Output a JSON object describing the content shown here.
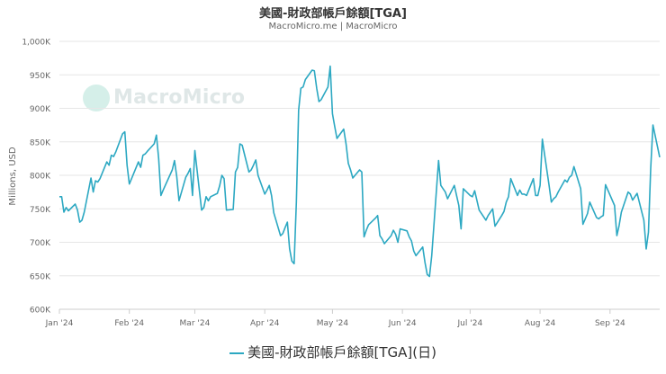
{
  "header": {
    "title": "美國-財政部帳戶餘額[TGA]",
    "subtitle": "MacroMicro.me | MacroMicro",
    "watermark": "MacroMicro"
  },
  "colors": {
    "series": "#2ca8c2",
    "grid": "#e6e6e6",
    "axis_text": "#666666"
  },
  "chart_data": {
    "type": "line",
    "title": "美國-財政部帳戶餘額[TGA]",
    "ylabel": "Millions, USD",
    "xlabel": "",
    "ylim": [
      600000,
      1000000
    ],
    "y_ticks": [
      600000,
      650000,
      700000,
      750000,
      800000,
      850000,
      900000,
      950000,
      1000000
    ],
    "y_tick_labels": [
      "600K",
      "650K",
      "700K",
      "750K",
      "800K",
      "850K",
      "900K",
      "950K",
      "1,000K"
    ],
    "x_range": [
      "2024-01-01",
      "2024-09-23"
    ],
    "x_ticks": [
      {
        "date": "2024-01-01",
        "label": "Jan '24"
      },
      {
        "date": "2024-02-01",
        "label": "Feb '24"
      },
      {
        "date": "2024-03-01",
        "label": "Mar '24"
      },
      {
        "date": "2024-04-01",
        "label": "Apr '24"
      },
      {
        "date": "2024-05-01",
        "label": "May '24"
      },
      {
        "date": "2024-06-01",
        "label": "Jun '24"
      },
      {
        "date": "2024-07-01",
        "label": "Jul '24"
      },
      {
        "date": "2024-08-01",
        "label": "Aug '24"
      },
      {
        "date": "2024-09-01",
        "label": "Sep '24"
      }
    ],
    "grid": true,
    "legend_position": "bottom",
    "series": [
      {
        "name": "美國-財政部帳戶餘額[TGA](日)",
        "points": [
          [
            "2024-01-01",
            768000
          ],
          [
            "2024-01-02",
            768000
          ],
          [
            "2024-01-03",
            745000
          ],
          [
            "2024-01-04",
            752000
          ],
          [
            "2024-01-05",
            747000
          ],
          [
            "2024-01-08",
            757000
          ],
          [
            "2024-01-09",
            748000
          ],
          [
            "2024-01-10",
            730000
          ],
          [
            "2024-01-11",
            733000
          ],
          [
            "2024-01-12",
            745000
          ],
          [
            "2024-01-15",
            796000
          ],
          [
            "2024-01-16",
            775000
          ],
          [
            "2024-01-17",
            792000
          ],
          [
            "2024-01-18",
            790000
          ],
          [
            "2024-01-19",
            795000
          ],
          [
            "2024-01-22",
            820000
          ],
          [
            "2024-01-23",
            815000
          ],
          [
            "2024-01-24",
            830000
          ],
          [
            "2024-01-25",
            828000
          ],
          [
            "2024-01-26",
            835000
          ],
          [
            "2024-01-29",
            862000
          ],
          [
            "2024-01-30",
            865000
          ],
          [
            "2024-01-31",
            815000
          ],
          [
            "2024-02-01",
            787000
          ],
          [
            "2024-02-02",
            795000
          ],
          [
            "2024-02-05",
            820000
          ],
          [
            "2024-02-06",
            812000
          ],
          [
            "2024-02-07",
            830000
          ],
          [
            "2024-02-08",
            832000
          ],
          [
            "2024-02-09",
            836000
          ],
          [
            "2024-02-12",
            847000
          ],
          [
            "2024-02-13",
            860000
          ],
          [
            "2024-02-14",
            825000
          ],
          [
            "2024-02-15",
            770000
          ],
          [
            "2024-02-16",
            778000
          ],
          [
            "2024-02-20",
            808000
          ],
          [
            "2024-02-21",
            822000
          ],
          [
            "2024-02-22",
            798000
          ],
          [
            "2024-02-23",
            762000
          ],
          [
            "2024-02-26",
            797000
          ],
          [
            "2024-02-27",
            803000
          ],
          [
            "2024-02-28",
            810000
          ],
          [
            "2024-02-29",
            770000
          ],
          [
            "2024-03-01",
            837000
          ],
          [
            "2024-03-04",
            748000
          ],
          [
            "2024-03-05",
            752000
          ],
          [
            "2024-03-06",
            768000
          ],
          [
            "2024-03-07",
            762000
          ],
          [
            "2024-03-08",
            768000
          ],
          [
            "2024-03-11",
            773000
          ],
          [
            "2024-03-12",
            784000
          ],
          [
            "2024-03-13",
            800000
          ],
          [
            "2024-03-14",
            795000
          ],
          [
            "2024-03-15",
            748000
          ],
          [
            "2024-03-18",
            749000
          ],
          [
            "2024-03-19",
            805000
          ],
          [
            "2024-03-20",
            812000
          ],
          [
            "2024-03-21",
            847000
          ],
          [
            "2024-03-22",
            845000
          ],
          [
            "2024-03-25",
            805000
          ],
          [
            "2024-03-26",
            808000
          ],
          [
            "2024-03-27",
            815000
          ],
          [
            "2024-03-28",
            823000
          ],
          [
            "2024-03-29",
            800000
          ],
          [
            "2024-04-01",
            772000
          ],
          [
            "2024-04-02",
            778000
          ],
          [
            "2024-04-03",
            785000
          ],
          [
            "2024-04-04",
            770000
          ],
          [
            "2024-04-05",
            744000
          ],
          [
            "2024-04-08",
            710000
          ],
          [
            "2024-04-09",
            713000
          ],
          [
            "2024-04-10",
            722000
          ],
          [
            "2024-04-11",
            730000
          ],
          [
            "2024-04-12",
            690000
          ],
          [
            "2024-04-13",
            672000
          ],
          [
            "2024-04-14",
            668000
          ],
          [
            "2024-04-15",
            760000
          ],
          [
            "2024-04-16",
            897000
          ],
          [
            "2024-04-17",
            930000
          ],
          [
            "2024-04-18",
            932000
          ],
          [
            "2024-04-19",
            943000
          ],
          [
            "2024-04-22",
            957000
          ],
          [
            "2024-04-23",
            956000
          ],
          [
            "2024-04-24",
            930000
          ],
          [
            "2024-04-25",
            910000
          ],
          [
            "2024-04-26",
            913000
          ],
          [
            "2024-04-29",
            932000
          ],
          [
            "2024-04-30",
            963000
          ],
          [
            "2024-05-01",
            892000
          ],
          [
            "2024-05-02",
            873000
          ],
          [
            "2024-05-03",
            855000
          ],
          [
            "2024-05-06",
            869000
          ],
          [
            "2024-05-07",
            847000
          ],
          [
            "2024-05-08",
            818000
          ],
          [
            "2024-05-09",
            808000
          ],
          [
            "2024-05-10",
            796000
          ],
          [
            "2024-05-13",
            808000
          ],
          [
            "2024-05-14",
            805000
          ],
          [
            "2024-05-15",
            708000
          ],
          [
            "2024-05-16",
            718000
          ],
          [
            "2024-05-17",
            726000
          ],
          [
            "2024-05-20",
            736000
          ],
          [
            "2024-05-21",
            740000
          ],
          [
            "2024-05-22",
            710000
          ],
          [
            "2024-05-23",
            705000
          ],
          [
            "2024-05-24",
            698000
          ],
          [
            "2024-05-27",
            710000
          ],
          [
            "2024-05-28",
            718000
          ],
          [
            "2024-05-29",
            712000
          ],
          [
            "2024-05-30",
            700000
          ],
          [
            "2024-05-31",
            720000
          ],
          [
            "2024-06-03",
            717000
          ],
          [
            "2024-06-04",
            708000
          ],
          [
            "2024-06-05",
            702000
          ],
          [
            "2024-06-06",
            687000
          ],
          [
            "2024-06-07",
            680000
          ],
          [
            "2024-06-10",
            693000
          ],
          [
            "2024-06-11",
            670000
          ],
          [
            "2024-06-12",
            652000
          ],
          [
            "2024-06-13",
            649000
          ],
          [
            "2024-06-14",
            680000
          ],
          [
            "2024-06-17",
            822000
          ],
          [
            "2024-06-18",
            785000
          ],
          [
            "2024-06-19",
            780000
          ],
          [
            "2024-06-20",
            775000
          ],
          [
            "2024-06-21",
            765000
          ],
          [
            "2024-06-24",
            785000
          ],
          [
            "2024-06-25",
            770000
          ],
          [
            "2024-06-26",
            755000
          ],
          [
            "2024-06-27",
            720000
          ],
          [
            "2024-06-28",
            780000
          ],
          [
            "2024-07-01",
            770000
          ],
          [
            "2024-07-02",
            768000
          ],
          [
            "2024-07-03",
            777000
          ],
          [
            "2024-07-05",
            748000
          ],
          [
            "2024-07-08",
            733000
          ],
          [
            "2024-07-09",
            740000
          ],
          [
            "2024-07-10",
            745000
          ],
          [
            "2024-07-11",
            750000
          ],
          [
            "2024-07-12",
            724000
          ],
          [
            "2024-07-15",
            740000
          ],
          [
            "2024-07-16",
            746000
          ],
          [
            "2024-07-17",
            760000
          ],
          [
            "2024-07-18",
            768000
          ],
          [
            "2024-07-19",
            795000
          ],
          [
            "2024-07-22",
            770000
          ],
          [
            "2024-07-23",
            778000
          ],
          [
            "2024-07-24",
            772000
          ],
          [
            "2024-07-25",
            772000
          ],
          [
            "2024-07-26",
            770000
          ],
          [
            "2024-07-29",
            795000
          ],
          [
            "2024-07-30",
            770000
          ],
          [
            "2024-07-31",
            770000
          ],
          [
            "2024-08-01",
            785000
          ],
          [
            "2024-08-02",
            854000
          ],
          [
            "2024-08-05",
            785000
          ],
          [
            "2024-08-06",
            760000
          ],
          [
            "2024-08-07",
            765000
          ],
          [
            "2024-08-08",
            768000
          ],
          [
            "2024-08-09",
            775000
          ],
          [
            "2024-08-12",
            793000
          ],
          [
            "2024-08-13",
            790000
          ],
          [
            "2024-08-14",
            797000
          ],
          [
            "2024-08-15",
            800000
          ],
          [
            "2024-08-16",
            813000
          ],
          [
            "2024-08-19",
            780000
          ],
          [
            "2024-08-20",
            727000
          ],
          [
            "2024-08-21",
            735000
          ],
          [
            "2024-08-22",
            743000
          ],
          [
            "2024-08-23",
            760000
          ],
          [
            "2024-08-26",
            737000
          ],
          [
            "2024-08-27",
            735000
          ],
          [
            "2024-08-28",
            738000
          ],
          [
            "2024-08-29",
            740000
          ],
          [
            "2024-08-30",
            786000
          ],
          [
            "2024-09-03",
            755000
          ],
          [
            "2024-09-04",
            710000
          ],
          [
            "2024-09-05",
            725000
          ],
          [
            "2024-09-06",
            745000
          ],
          [
            "2024-09-09",
            775000
          ],
          [
            "2024-09-10",
            772000
          ],
          [
            "2024-09-11",
            763000
          ],
          [
            "2024-09-12",
            768000
          ],
          [
            "2024-09-13",
            773000
          ],
          [
            "2024-09-16",
            733000
          ],
          [
            "2024-09-17",
            690000
          ],
          [
            "2024-09-18",
            715000
          ],
          [
            "2024-09-19",
            810000
          ],
          [
            "2024-09-20",
            875000
          ],
          [
            "2024-09-23",
            827000
          ]
        ]
      }
    ]
  },
  "legend": {
    "label": "美國-財政部帳戶餘額[TGA](日)"
  }
}
